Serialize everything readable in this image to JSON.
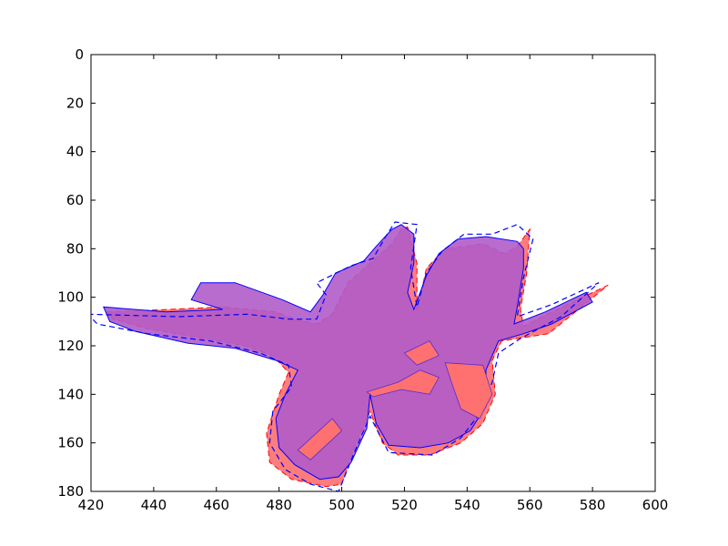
{
  "chart_data": {
    "type": "area",
    "title": "",
    "xlabel": "",
    "ylabel": "",
    "xlim": [
      420,
      600
    ],
    "ylim": [
      180,
      0
    ],
    "y_inverted": true,
    "grid": false,
    "legend": "none",
    "x_ticks": [
      420,
      440,
      460,
      480,
      500,
      520,
      540,
      560,
      580,
      600
    ],
    "y_ticks": [
      0,
      20,
      40,
      60,
      80,
      100,
      120,
      140,
      160,
      180
    ],
    "series": [
      {
        "role": "red-filled-region",
        "color": "#ff6e6e",
        "outline_color": "#ff0000",
        "outline_style": "dashed",
        "fill_opacity": 0.9,
        "points": [
          [
            425,
            106
          ],
          [
            445,
            105
          ],
          [
            462,
            104
          ],
          [
            479,
            106
          ],
          [
            485,
            109
          ],
          [
            492,
            111
          ],
          [
            497,
            107
          ],
          [
            502,
            94
          ],
          [
            509,
            86
          ],
          [
            516,
            78
          ],
          [
            519,
            72
          ],
          [
            521,
            71
          ],
          [
            524,
            86
          ],
          [
            524,
            106
          ],
          [
            527,
            88
          ],
          [
            533,
            80
          ],
          [
            545,
            78
          ],
          [
            552,
            82
          ],
          [
            556,
            79
          ],
          [
            560,
            72
          ],
          [
            559,
            90
          ],
          [
            557,
            105
          ],
          [
            558,
            112
          ],
          [
            567,
            106
          ],
          [
            585,
            95
          ],
          [
            566,
            115
          ],
          [
            551,
            118
          ],
          [
            548,
            126
          ],
          [
            549,
            140
          ],
          [
            545,
            152
          ],
          [
            538,
            160
          ],
          [
            528,
            165
          ],
          [
            518,
            165
          ],
          [
            513,
            160
          ],
          [
            509,
            147
          ],
          [
            504,
            162
          ],
          [
            500,
            177
          ],
          [
            495,
            178
          ],
          [
            484,
            175
          ],
          [
            477,
            168
          ],
          [
            476,
            156
          ],
          [
            480,
            140
          ],
          [
            483,
            131
          ],
          [
            478,
            124
          ],
          [
            469,
            120
          ],
          [
            456,
            117
          ],
          [
            438,
            113
          ],
          [
            427,
            109
          ]
        ]
      },
      {
        "role": "purple-filled-region",
        "color": "#b05cc9",
        "outline_color": "#0000ff",
        "outline_style": "solid",
        "fill_opacity": 0.9,
        "points": [
          [
            424,
            104
          ],
          [
            444,
            106
          ],
          [
            462,
            105
          ],
          [
            452,
            101
          ],
          [
            455,
            94
          ],
          [
            466,
            94
          ],
          [
            481,
            101
          ],
          [
            490,
            106
          ],
          [
            494,
            99
          ],
          [
            498,
            90
          ],
          [
            507,
            85
          ],
          [
            511,
            79
          ],
          [
            516,
            72
          ],
          [
            519,
            70
          ],
          [
            523,
            74
          ],
          [
            523,
            86
          ],
          [
            521,
            98
          ],
          [
            523,
            105
          ],
          [
            527,
            91
          ],
          [
            531,
            82
          ],
          [
            537,
            76
          ],
          [
            546,
            75
          ],
          [
            556,
            77
          ],
          [
            558,
            80
          ],
          [
            558,
            88
          ],
          [
            556,
            104
          ],
          [
            555,
            111
          ],
          [
            565,
            106
          ],
          [
            578,
            98
          ],
          [
            580,
            102
          ],
          [
            567,
            111
          ],
          [
            558,
            115
          ],
          [
            550,
            118
          ],
          [
            546,
            130
          ],
          [
            546,
            145
          ],
          [
            541,
            155
          ],
          [
            534,
            160
          ],
          [
            525,
            162
          ],
          [
            515,
            161
          ],
          [
            511,
            152
          ],
          [
            509,
            140
          ],
          [
            508,
            154
          ],
          [
            503,
            168
          ],
          [
            499,
            174
          ],
          [
            493,
            175
          ],
          [
            485,
            169
          ],
          [
            480,
            162
          ],
          [
            479,
            150
          ],
          [
            482,
            140
          ],
          [
            486,
            130
          ],
          [
            479,
            126
          ],
          [
            466,
            121
          ],
          [
            451,
            119
          ],
          [
            434,
            114
          ],
          [
            426,
            110
          ]
        ]
      },
      {
        "role": "blue-dashed-outline",
        "color": "#0000ff",
        "style": "dashed",
        "points": [
          [
            419,
            107
          ],
          [
            448,
            108
          ],
          [
            470,
            107
          ],
          [
            483,
            109
          ],
          [
            492,
            109
          ],
          [
            495,
            99
          ],
          [
            492,
            94
          ],
          [
            503,
            87
          ],
          [
            510,
            84
          ],
          [
            514,
            75
          ],
          [
            517,
            69
          ],
          [
            524,
            70
          ],
          [
            522,
            88
          ],
          [
            524,
            104
          ],
          [
            527,
            90
          ],
          [
            532,
            81
          ],
          [
            539,
            74
          ],
          [
            548,
            74
          ],
          [
            556,
            70
          ],
          [
            561,
            76
          ],
          [
            558,
            92
          ],
          [
            556,
            108
          ],
          [
            567,
            103
          ],
          [
            582,
            94
          ],
          [
            570,
            108
          ],
          [
            557,
            117
          ],
          [
            550,
            123
          ],
          [
            548,
            135
          ],
          [
            544,
            148
          ],
          [
            538,
            158
          ],
          [
            529,
            165
          ],
          [
            515,
            164
          ],
          [
            511,
            154
          ],
          [
            509,
            149
          ],
          [
            504,
            164
          ],
          [
            499,
            180
          ],
          [
            490,
            177
          ],
          [
            482,
            171
          ],
          [
            477,
            160
          ],
          [
            478,
            147
          ],
          [
            484,
            137
          ],
          [
            483,
            128
          ],
          [
            474,
            123
          ],
          [
            458,
            118
          ],
          [
            438,
            115
          ],
          [
            422,
            111
          ]
        ]
      }
    ],
    "holes": [
      {
        "region": "lower-left-strip",
        "points": [
          [
            486,
            163
          ],
          [
            497,
            150
          ],
          [
            500,
            155
          ],
          [
            490,
            167
          ]
        ]
      },
      {
        "region": "center-band",
        "points": [
          [
            508,
            139
          ],
          [
            518,
            135
          ],
          [
            525,
            130
          ],
          [
            531,
            133
          ],
          [
            528,
            140
          ],
          [
            519,
            138
          ],
          [
            510,
            141
          ]
        ]
      },
      {
        "region": "right-lobe-cutout",
        "points": [
          [
            533,
            127
          ],
          [
            545,
            128
          ],
          [
            548,
            140
          ],
          [
            544,
            150
          ],
          [
            538,
            146
          ],
          [
            535,
            135
          ]
        ]
      },
      {
        "region": "small-pocket",
        "points": [
          [
            520,
            123
          ],
          [
            528,
            118
          ],
          [
            531,
            124
          ],
          [
            524,
            128
          ]
        ]
      }
    ]
  }
}
